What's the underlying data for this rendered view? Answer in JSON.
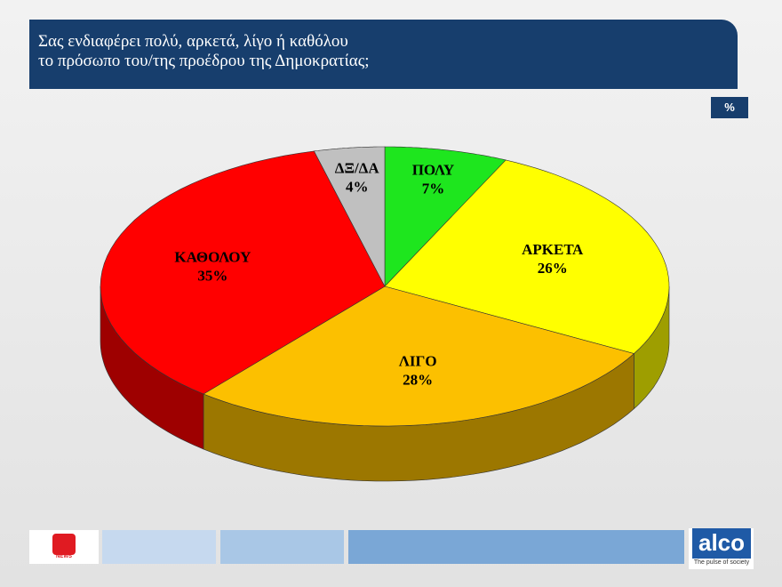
{
  "chart_data": {
    "type": "pie",
    "title": "Σας ενδιαφέρει πολύ, αρκετά, λίγο ή καθόλου\nτο πρόσωπο του/της προέδρου της Δημοκρατίας;",
    "unit": "%",
    "categories": [
      "ΠΟΛΥ",
      "ΑΡΚΕΤΑ",
      "ΛΙΓΟ",
      "ΚΑΘΟΛΟΥ",
      "ΔΞ/ΔΑ"
    ],
    "values": [
      7,
      26,
      28,
      35,
      4
    ],
    "value_labels": [
      "7%",
      "26%",
      "28%",
      "35%",
      "4%"
    ],
    "colors": [
      "#1ee61e",
      "#ffff00",
      "#fcc000",
      "#ff0000",
      "#c0c0c0"
    ]
  },
  "footer": {
    "news_logo": "NEWS",
    "brand": "alco",
    "tagline": "The pulse of society"
  }
}
